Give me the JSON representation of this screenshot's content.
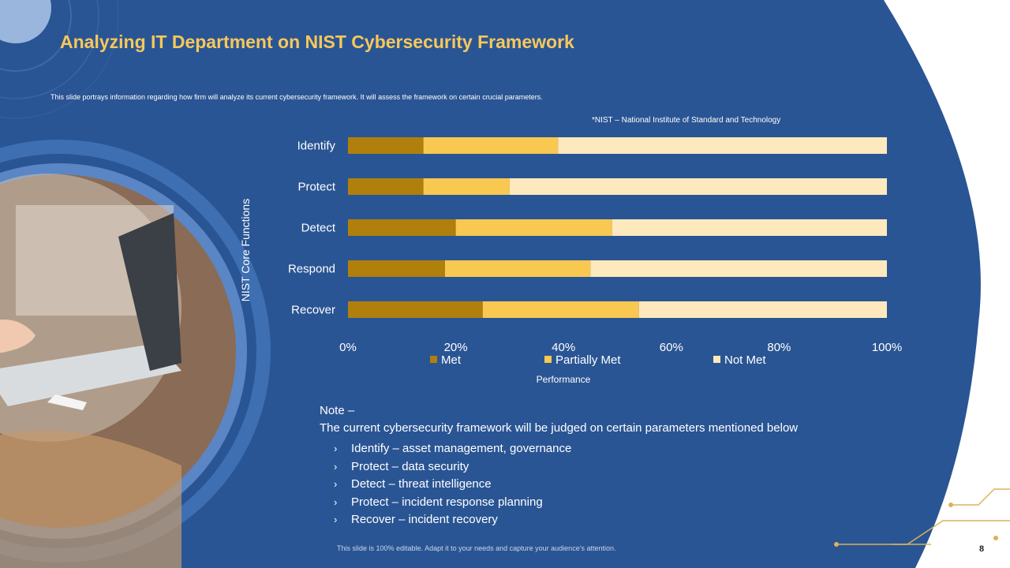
{
  "slide": {
    "title": "Analyzing IT Department on NIST Cybersecurity Framework",
    "subtitle": "This slide portrays information regarding how firm will analyze its current cybersecurity framework. It will assess the framework on certain crucial parameters.",
    "footnote": "*NIST – National Institute of Standard and Technology",
    "footer_text": "This slide is 100% editable. Adapt it to your needs and capture your audience’s attention.",
    "page_number": "8"
  },
  "colors": {
    "background_blue": "#2a5594",
    "title_gold": "#f7c85a",
    "met": "#b07f0c",
    "partially_met": "#f9c851",
    "not_met": "#fde9bd"
  },
  "note": {
    "heading": "Note –",
    "line": "The current cybersecurity framework will be judged on certain parameters mentioned below",
    "bullets": [
      "Identify – asset management, governance",
      "Protect – data security",
      "Detect – threat intelligence",
      "Protect – incident response planning",
      "Recover – incident recovery"
    ],
    "bullet_icon": "chevron-right-icon"
  },
  "chart_data": {
    "type": "bar",
    "orientation": "horizontal",
    "stacked": "percent",
    "title": "",
    "xlabel": "Performance",
    "ylabel": "NIST Core Functions",
    "categories": [
      "Identify",
      "Protect",
      "Detect",
      "Respond",
      "Recover"
    ],
    "series": [
      {
        "name": "Met",
        "values": [
          14,
          14,
          20,
          18,
          25
        ]
      },
      {
        "name": "Partially Met",
        "values": [
          25,
          16,
          29,
          27,
          29
        ]
      },
      {
        "name": "Not Met",
        "values": [
          61,
          70,
          51,
          55,
          46
        ]
      }
    ],
    "xlim": [
      0,
      100
    ],
    "xticks": [
      "0%",
      "20%",
      "40%",
      "60%",
      "80%",
      "100%"
    ],
    "legend": "bottom",
    "grid": false
  }
}
